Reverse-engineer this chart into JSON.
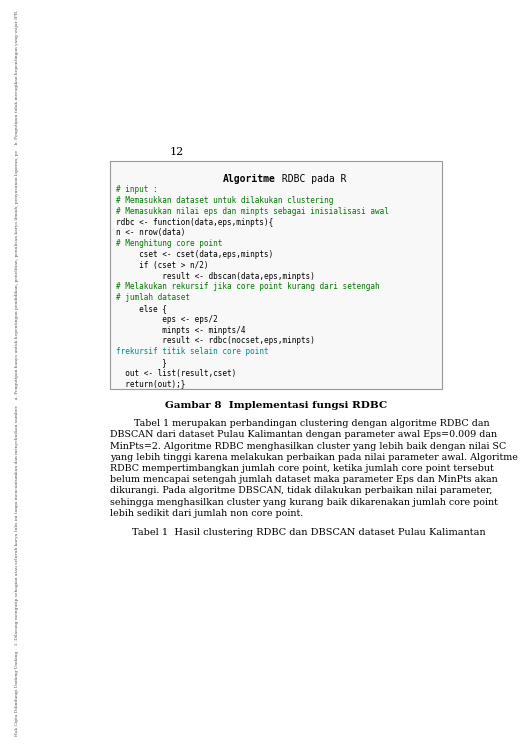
{
  "page_number": "12",
  "bg_color": "#ffffff",
  "sidebar_lines": [
    "Hak Cipta Dilindungi Undang-Undang",
    "1. Dilarang mengutip sebagian atau seluruh karya tulis ini tanpa mencantumkan dan menyebutkan sumber.",
    "a. Pengutipan hanya untuk kepentingan pendidikan, penelitian, penulisan karya ilmiah, penyusunan laporan, pe",
    "b. Pengutipan tidak merugikan kepentingan yang wajar IPB."
  ],
  "code_box_title_bold": "Algoritme",
  "code_box_title_normal": " RDBC pada R",
  "code_lines": [
    {
      "text": "# input :",
      "color": "#007700",
      "indent": 0
    },
    {
      "text": "# Memasukkan dataset untuk dilakukan clustering",
      "color": "#007700",
      "indent": 0
    },
    {
      "text": "# Memasukkan nilai eps dan minpts sebagai inisialisasi awal",
      "color": "#007700",
      "indent": 0
    },
    {
      "text": "rdbc <- function(data,eps,minpts){",
      "color": "#000000",
      "indent": 1
    },
    {
      "text": "n <- nrow(data)",
      "color": "#000000",
      "indent": 2
    },
    {
      "text": "# Menghitung core point",
      "color": "#007700",
      "indent": 0
    },
    {
      "text": "     cset <- cset(data,eps,minpts)",
      "color": "#000000",
      "indent": 2
    },
    {
      "text": "     if (cset > n/2)",
      "color": "#000000",
      "indent": 2
    },
    {
      "text": "          result <- dbscan(data,eps,minpts)",
      "color": "#000000",
      "indent": 3
    },
    {
      "text": "# Melakukan rekursif jika core point kurang dari setengah",
      "color": "#007700",
      "indent": 0
    },
    {
      "text": "# jumlah dataset",
      "color": "#007700",
      "indent": 0
    },
    {
      "text": "     else {",
      "color": "#000000",
      "indent": 2
    },
    {
      "text": "          eps <- eps/2",
      "color": "#000000",
      "indent": 3
    },
    {
      "text": "          minpts <- minpts/4",
      "color": "#000000",
      "indent": 3
    },
    {
      "text": "          result <- rdbc(nocset,eps,minpts)",
      "color": "#000000",
      "indent": 3
    },
    {
      "text": "frekursif titik selain core point",
      "color": "#008888",
      "indent": 0
    },
    {
      "text": "          }",
      "color": "#000000",
      "indent": 2
    },
    {
      "text": "  out <- list(result,cset)",
      "color": "#000000",
      "indent": 1
    },
    {
      "text": "  return(out);}",
      "color": "#000000",
      "indent": 1
    }
  ],
  "figure_caption": "Gambar 8  Implementasi fungsi RDBC",
  "body_indent_text": "        Tabel 1 merupakan perbandingan ",
  "body_text_lines": [
    "        Tabel 1 merupakan perbandingan clustering dengan algoritme RDBC dan",
    "DBSCAN dari dataset Pulau Kalimantan dengan parameter awal Eps=0.009 dan",
    "MinPts=2. Algoritme RDBC menghasilkan cluster yang lebih baik dengan nilai SC",
    "yang lebih tinggi karena melakukan perbaikan pada nilai parameter awal. Algoritme",
    "RDBC mempertimbangkan jumlah core point, ketika jumlah core point tersebut",
    "belum mencapai setengah jumlah dataset maka parameter Eps dan MinPts akan",
    "dikurangi. Pada algoritme DBSCAN, tidak dilakukan perbaikan nilai parameter,",
    "sehingga menghasilkan cluster yang kurang baik dikarenakan jumlah core point",
    "lebih sedikit dari jumlah non core point."
  ],
  "table_caption": "Tabel 1  Hasil clustering RDBC dan DBSCAN dataset Pulau Kalimantan"
}
